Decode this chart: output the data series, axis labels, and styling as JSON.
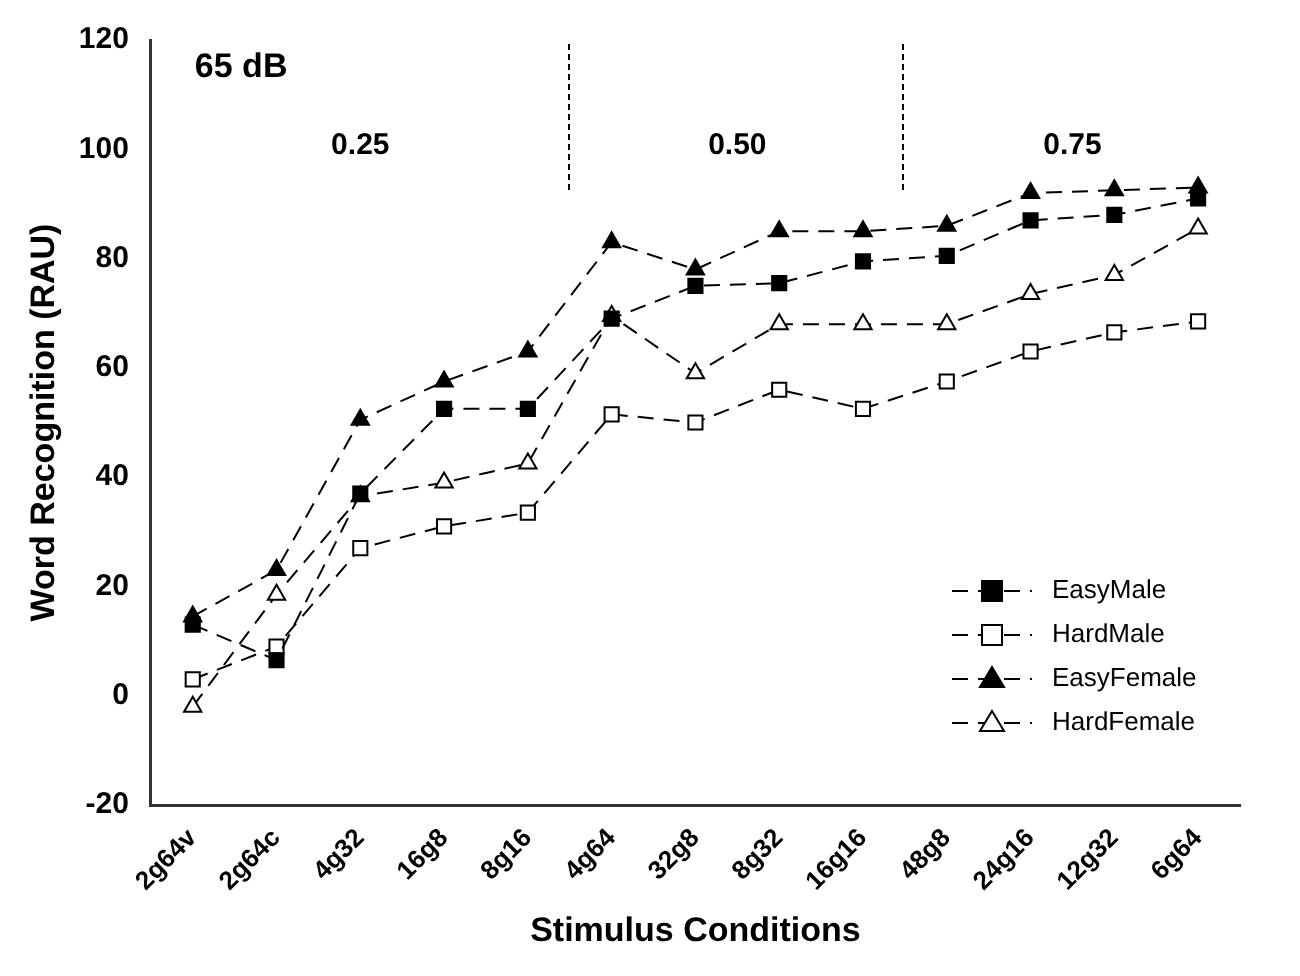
{
  "chart_data": {
    "type": "line",
    "xlabel": "Stimulus Conditions",
    "ylabel": "Word Recognition (RAU)",
    "categories": [
      "2g64v",
      "2g64c",
      "4g32",
      "16g8",
      "8g16",
      "4g64",
      "32g8",
      "8g32",
      "16g16",
      "48g8",
      "24g16",
      "12g32",
      "6g64"
    ],
    "series": [
      {
        "name": "EasyMale",
        "color": "#000000",
        "marker": "square",
        "values": [
          13,
          6.5,
          37,
          52.5,
          52.5,
          69,
          75,
          75.5,
          79.5,
          80.5,
          87,
          88,
          91
        ]
      },
      {
        "name": "HardMale",
        "color": "#000000",
        "marker": "square",
        "values": [
          3,
          9,
          27,
          31,
          33.5,
          51.5,
          50,
          56,
          52.5,
          57.5,
          63,
          66.5,
          68.5
        ]
      },
      {
        "name": "EasyFemale",
        "color": "#000000",
        "marker": "triangle",
        "values": [
          14.5,
          23,
          50.5,
          57.5,
          63,
          83,
          78,
          85,
          85,
          86,
          92,
          92.5,
          93
        ]
      },
      {
        "name": "HardFemale",
        "color": "#000000",
        "marker": "triangle",
        "values": [
          -2,
          18.5,
          36.5,
          39,
          42.5,
          69.5,
          59,
          68,
          68,
          68,
          73.5,
          77,
          85.5
        ]
      }
    ],
    "ylim": [
      -20,
      120
    ],
    "yticks": [
      -20,
      0,
      20,
      40,
      60,
      80,
      100,
      120
    ],
    "annotations": [
      "65 dB",
      "0.25",
      "0.50",
      "0.75"
    ],
    "line_style": "dashed",
    "grid": false,
    "legend": "bottom right"
  }
}
